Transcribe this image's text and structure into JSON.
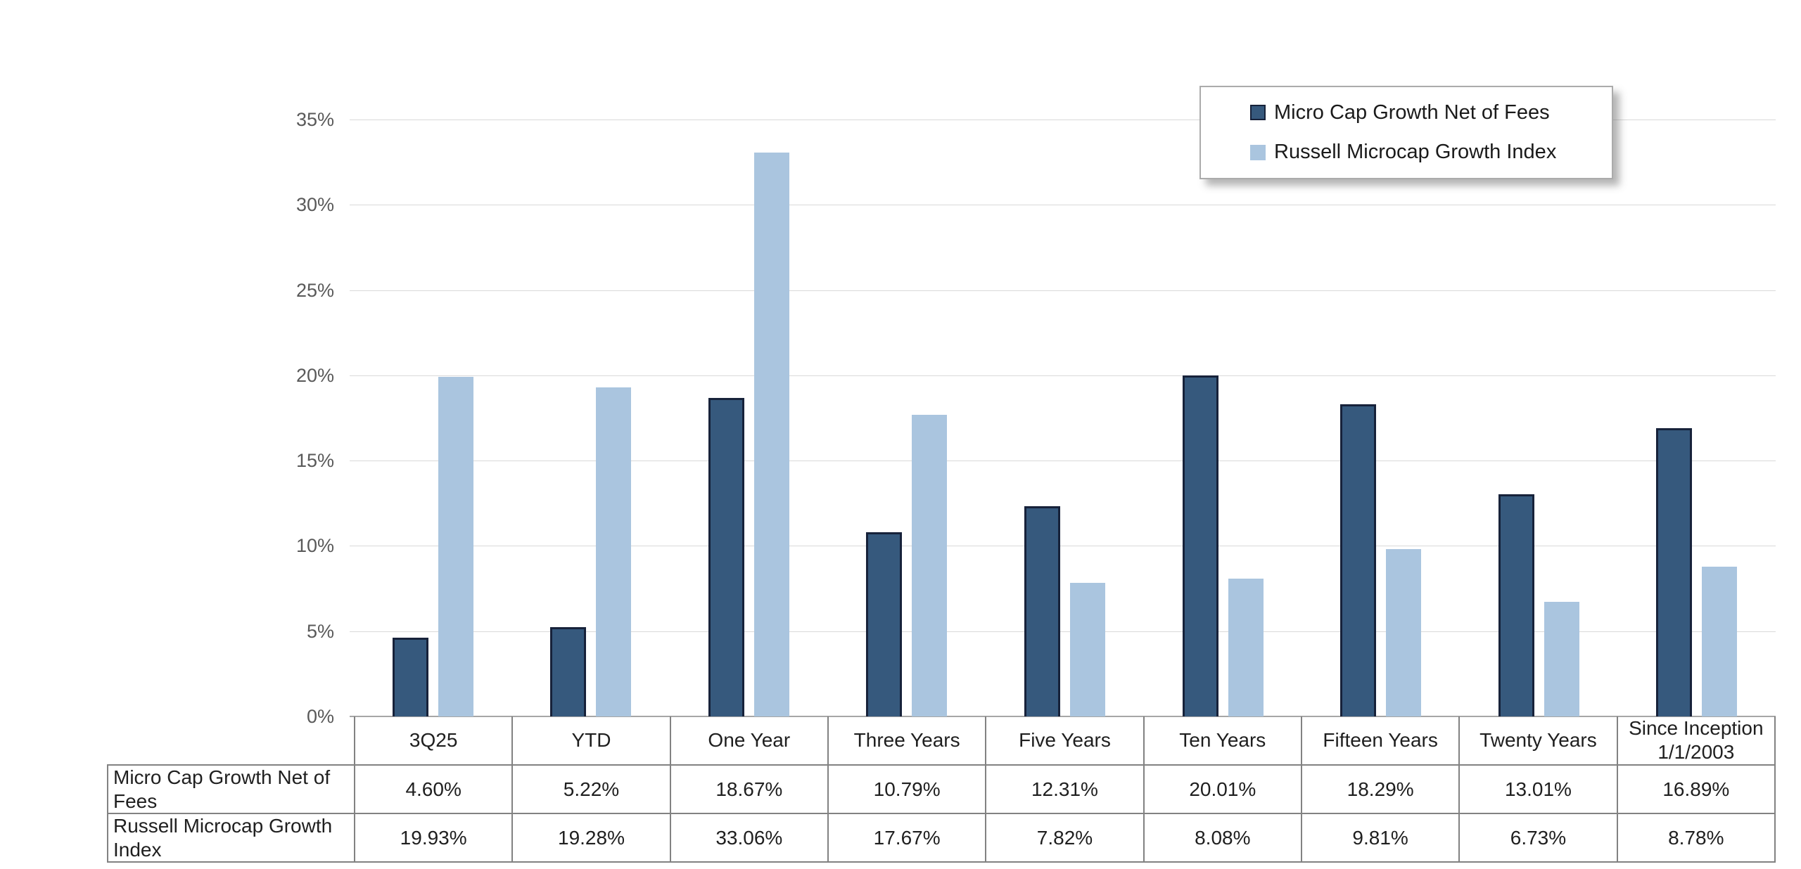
{
  "chart": {
    "y_axis": {
      "ticks": [
        "0%",
        "5%",
        "10%",
        "15%",
        "20%",
        "25%",
        "30%",
        "35%"
      ]
    },
    "legend": [
      {
        "label": "Micro Cap Growth Net of Fees",
        "color": "#36597d",
        "border": "#17223a"
      },
      {
        "label": "Russell Microcap Growth Index",
        "color": "#aac5df",
        "border": "#aac5df"
      }
    ]
  },
  "chart_data": {
    "type": "bar",
    "categories": [
      "3Q25",
      "YTD",
      "One Year",
      "Three Years",
      "Five Years",
      "Ten Years",
      "Fifteen Years",
      "Twenty Years",
      "Since Inception 1/1/2003"
    ],
    "series": [
      {
        "name": "Micro Cap Growth Net of Fees",
        "color": "#36597d",
        "values": [
          4.6,
          5.22,
          18.67,
          10.79,
          12.31,
          20.01,
          18.29,
          13.01,
          16.89
        ]
      },
      {
        "name": "Russell Microcap Growth Index",
        "color": "#aac5df",
        "values": [
          19.93,
          19.28,
          33.06,
          17.67,
          7.82,
          8.08,
          9.81,
          6.73,
          8.78
        ]
      }
    ],
    "title": "",
    "xlabel": "",
    "ylabel": "",
    "ylim": [
      0,
      35
    ],
    "ytick_step": 5,
    "grid": true,
    "legend_position": "top-right"
  },
  "table": {
    "column_headers": [
      "3Q25",
      "YTD",
      "One Year",
      "Three Years",
      "Five Years",
      "Ten Years",
      "Fifteen Years",
      "Twenty Years",
      "Since Inception 1/1/2003"
    ],
    "rows": [
      {
        "label": "Micro Cap Growth Net of Fees",
        "values": [
          "4.60%",
          "5.22%",
          "18.67%",
          "10.79%",
          "12.31%",
          "20.01%",
          "18.29%",
          "13.01%",
          "16.89%"
        ]
      },
      {
        "label": "Russell Microcap Growth Index",
        "values": [
          "19.93%",
          "19.28%",
          "33.06%",
          "17.67%",
          "7.82%",
          "8.08%",
          "9.81%",
          "6.73%",
          "8.78%"
        ]
      }
    ]
  },
  "colors": {
    "series_dark": "#36597d",
    "series_dark_border": "#17223a",
    "series_light": "#aac5df",
    "gridline": "#d9d9d9",
    "axis_line": "#a6a6a6",
    "table_border": "#828282",
    "tick_text": "#595959",
    "body_text": "#1f1f1f"
  }
}
